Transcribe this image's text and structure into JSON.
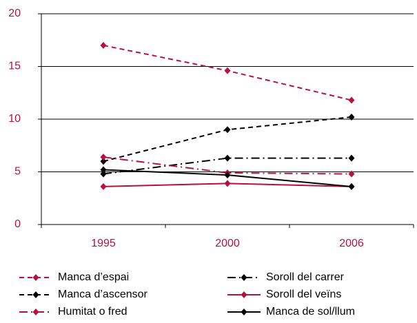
{
  "chart_data": {
    "type": "line",
    "categories": [
      "1995",
      "2000",
      "2006"
    ],
    "series": [
      {
        "name": "Manca d’espai",
        "color": "#b5123f",
        "line_style": "dashed",
        "values": [
          17.0,
          14.6,
          11.8
        ]
      },
      {
        "name": "Soroll del carrer",
        "color": "#000000",
        "line_style": "dashdot",
        "values": [
          4.8,
          6.3,
          6.3
        ]
      },
      {
        "name": "Manca d’ascensor",
        "color": "#000000",
        "line_style": "dashed",
        "values": [
          6.0,
          9.0,
          10.2
        ]
      },
      {
        "name": "Soroll del veïns",
        "color": "#b5123f",
        "line_style": "solid",
        "values": [
          3.6,
          3.9,
          3.6
        ]
      },
      {
        "name": "Humitat o fred",
        "color": "#b5123f",
        "line_style": "dashdot",
        "values": [
          6.4,
          4.9,
          4.8
        ]
      },
      {
        "name": "Manca de sol/llum",
        "color": "#000000",
        "line_style": "solid",
        "values": [
          5.2,
          4.7,
          3.6
        ]
      }
    ],
    "ylim": [
      0,
      20
    ],
    "yticks": [
      0,
      5,
      10,
      15,
      20
    ],
    "grid": true,
    "legend": "bottom"
  }
}
